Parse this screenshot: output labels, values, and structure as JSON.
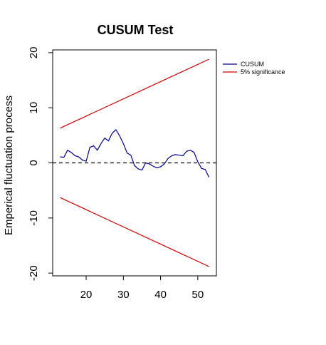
{
  "chart_data": {
    "type": "line",
    "title": "CUSUM Test",
    "xlabel": "",
    "ylabel": "Emperical fluctuation process",
    "xlim": [
      11,
      55
    ],
    "ylim": [
      -20.5,
      20.5
    ],
    "x_ticks": [
      20,
      30,
      40,
      50
    ],
    "y_ticks": [
      -20,
      -10,
      0,
      10,
      20
    ],
    "grid": false,
    "legend_position": "top-right",
    "zero_line": {
      "y": 0,
      "style": "dashed",
      "color": "#000000"
    },
    "series": [
      {
        "name": "CUSUM",
        "color": "#00008B",
        "x": [
          13,
          14,
          15,
          16,
          17,
          18,
          19,
          20,
          21,
          22,
          23,
          24,
          25,
          26,
          27,
          28,
          29,
          30,
          31,
          32,
          33,
          34,
          35,
          36,
          37,
          38,
          39,
          40,
          41,
          42,
          43,
          44,
          45,
          46,
          47,
          48,
          49,
          50,
          51,
          52,
          53
        ],
        "values": [
          1.1,
          1.0,
          2.3,
          1.9,
          1.3,
          1.1,
          0.5,
          0.3,
          2.8,
          3.1,
          2.3,
          3.5,
          4.5,
          4.0,
          5.4,
          6.0,
          4.9,
          3.5,
          1.8,
          1.4,
          -0.5,
          -1.1,
          -1.3,
          0.0,
          -0.2,
          -0.6,
          -0.9,
          -0.7,
          -0.2,
          0.8,
          1.3,
          1.5,
          1.4,
          1.3,
          2.1,
          2.3,
          1.9,
          0.2,
          -1.0,
          -1.2,
          -2.6
        ]
      },
      {
        "name": "5% significance",
        "color": "#CC0000",
        "x": [
          13,
          53
        ],
        "values": [
          6.3,
          18.8
        ]
      },
      {
        "name": "",
        "color": "#CC0000",
        "x": [
          13,
          53
        ],
        "values": [
          -6.3,
          -18.8
        ]
      }
    ],
    "legend": [
      {
        "label": "CUSUM",
        "color": "#00008B"
      },
      {
        "label": "5% significance",
        "color": "#CC0000"
      }
    ]
  }
}
